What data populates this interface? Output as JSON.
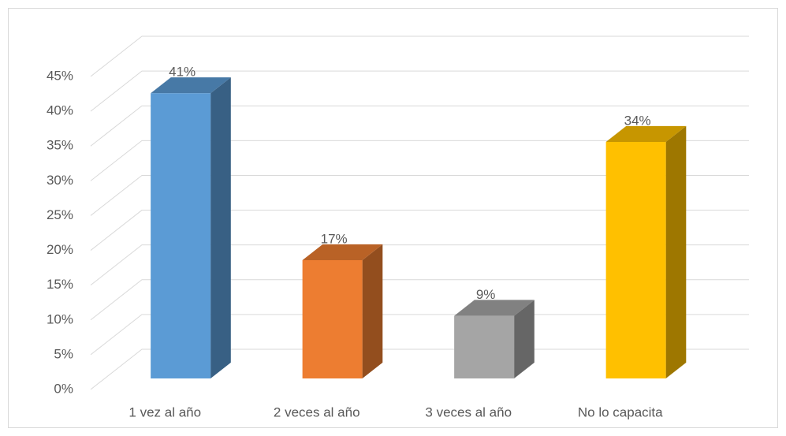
{
  "chart_data": {
    "type": "bar3d",
    "categories": [
      "1 vez al año",
      "2 veces al año",
      "3 veces al año",
      "No lo capacita"
    ],
    "values": [
      41,
      17,
      9,
      34
    ],
    "value_labels": [
      "41%",
      "17%",
      "9%",
      "34%"
    ],
    "colors": [
      "#5b9bd5",
      "#ed7d31",
      "#a5a5a5",
      "#ffc000"
    ],
    "ylim": [
      0,
      45
    ],
    "yticks": [
      {
        "value": 0,
        "label": "0%"
      },
      {
        "value": 5,
        "label": "5%"
      },
      {
        "value": 10,
        "label": "10%"
      },
      {
        "value": 15,
        "label": "15%"
      },
      {
        "value": 20,
        "label": "20%"
      },
      {
        "value": 25,
        "label": "25%"
      },
      {
        "value": 30,
        "label": "30%"
      },
      {
        "value": 35,
        "label": "35%"
      },
      {
        "value": 40,
        "label": "40%"
      },
      {
        "value": 45,
        "label": "45%"
      }
    ],
    "grid": true
  }
}
